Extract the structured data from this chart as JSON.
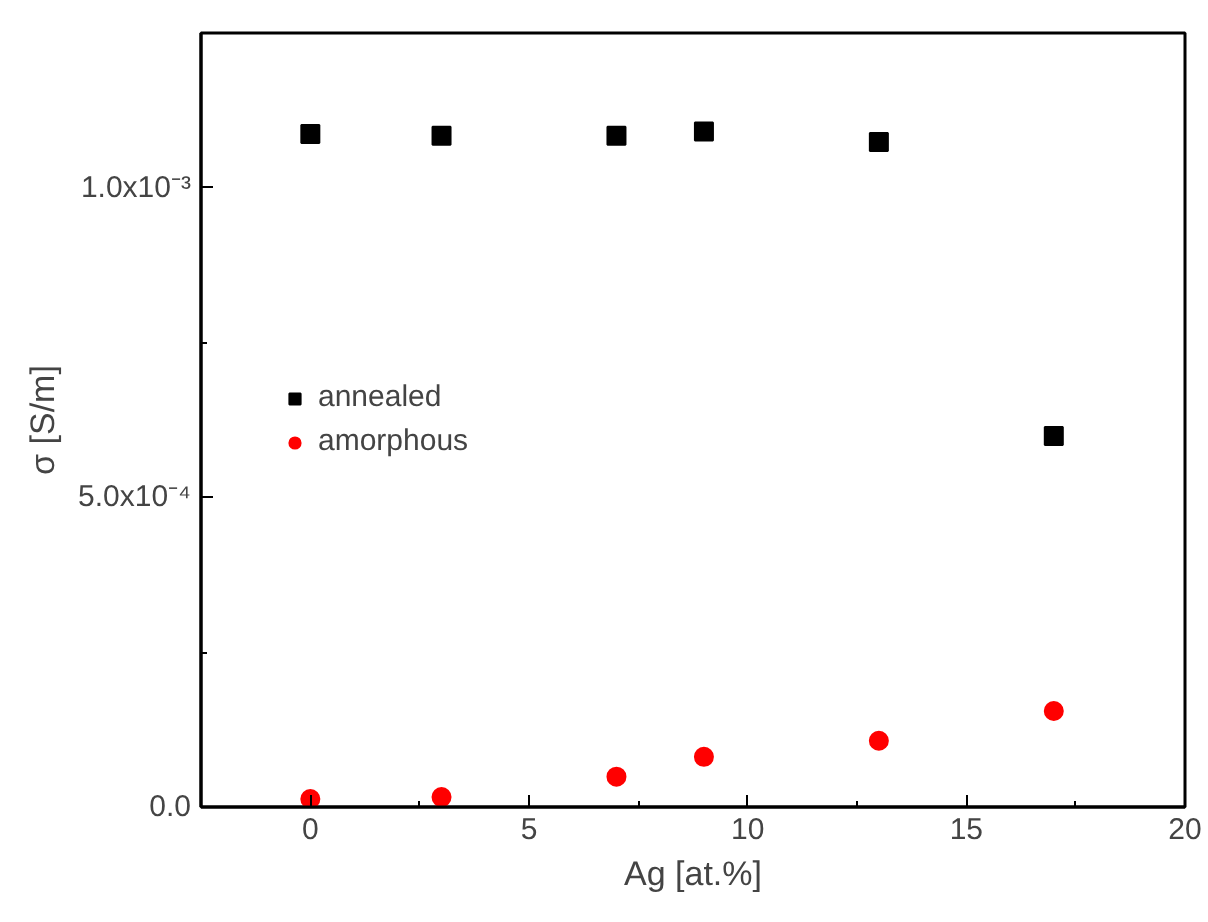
{
  "chart_data": {
    "type": "scatter",
    "xlabel": "Ag [at.%]",
    "ylabel": "σ [S/m]",
    "xlim": [
      -2.5,
      20
    ],
    "xticks": [
      0,
      {
        "value": 2.5,
        "label": null
      },
      5,
      {
        "value": 7.5,
        "label": null
      },
      10,
      {
        "value": 12.5,
        "label": null
      },
      15,
      {
        "value": 17.5,
        "label": null
      },
      20
    ],
    "ylim": [
      0,
      0.00125
    ],
    "yticks": [
      {
        "value": 0,
        "label": "0.0"
      },
      {
        "value": 0.00025,
        "label": null
      },
      {
        "value": 0.0005,
        "label": "5.0x10⁻⁴"
      },
      {
        "value": 0.00075,
        "label": null
      },
      {
        "value": 0.001,
        "label": "1.0x10⁻³"
      }
    ],
    "grid": false,
    "legend": "left",
    "series": [
      {
        "name": "annealed",
        "color": "#000000",
        "marker": "square",
        "x": [
          0,
          3,
          7,
          9,
          13,
          17
        ],
        "values": [
          0.001087,
          0.001084,
          0.001084,
          0.001091,
          0.001074,
          0.000599
        ]
      },
      {
        "name": "amorphous",
        "color": "#ff0000",
        "marker": "circle",
        "x": [
          0,
          3,
          7,
          9,
          13,
          17
        ],
        "values": [
          1.3e-05,
          1.6e-05,
          4.9e-05,
          8.1e-05,
          0.000107,
          0.000155
        ]
      }
    ]
  }
}
